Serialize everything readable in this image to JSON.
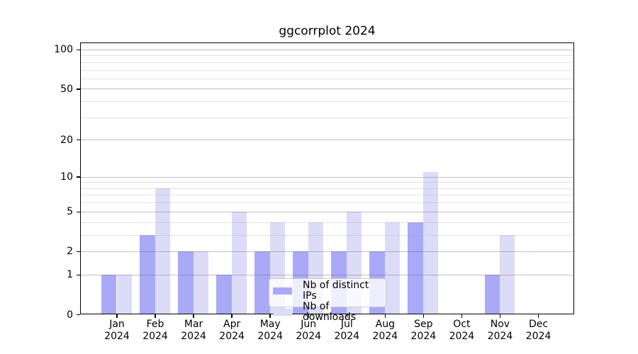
{
  "chart_data": {
    "type": "bar",
    "title": "ggcorrplot 2024",
    "categories": [
      "Jan",
      "Feb",
      "Mar",
      "Apr",
      "May",
      "Jun",
      "Jul",
      "Aug",
      "Sep",
      "Oct",
      "Nov",
      "Dec"
    ],
    "category_year_line": "2024",
    "series": [
      {
        "name": "Nb of distinct IPs",
        "color": "#a9a9f7",
        "values": [
          1,
          3,
          2,
          1,
          2,
          2,
          2,
          2,
          4,
          0,
          1,
          0
        ]
      },
      {
        "name": "Nb of downloads",
        "color": "#dcdcf9",
        "values": [
          1,
          8,
          2,
          5,
          4,
          4,
          5,
          4,
          11,
          0,
          3,
          0
        ]
      }
    ],
    "y_axis": {
      "scale": "log1p",
      "range": [
        0,
        100
      ],
      "tick_labels": [
        0,
        1,
        2,
        5,
        10,
        20,
        50,
        100
      ],
      "minor_gridlines": [
        3,
        4,
        6,
        7,
        8,
        9,
        30,
        40,
        60,
        70,
        80,
        90
      ]
    },
    "x_axis": {
      "label": "",
      "tick_style": "two-line month + year"
    },
    "grid": {
      "horizontal": true,
      "vertical": false,
      "drawn_above_bars": true
    },
    "legend": {
      "position": "lower center",
      "background": "rgba(255,255,255,0.8)",
      "border_color": "#cccccc"
    }
  }
}
